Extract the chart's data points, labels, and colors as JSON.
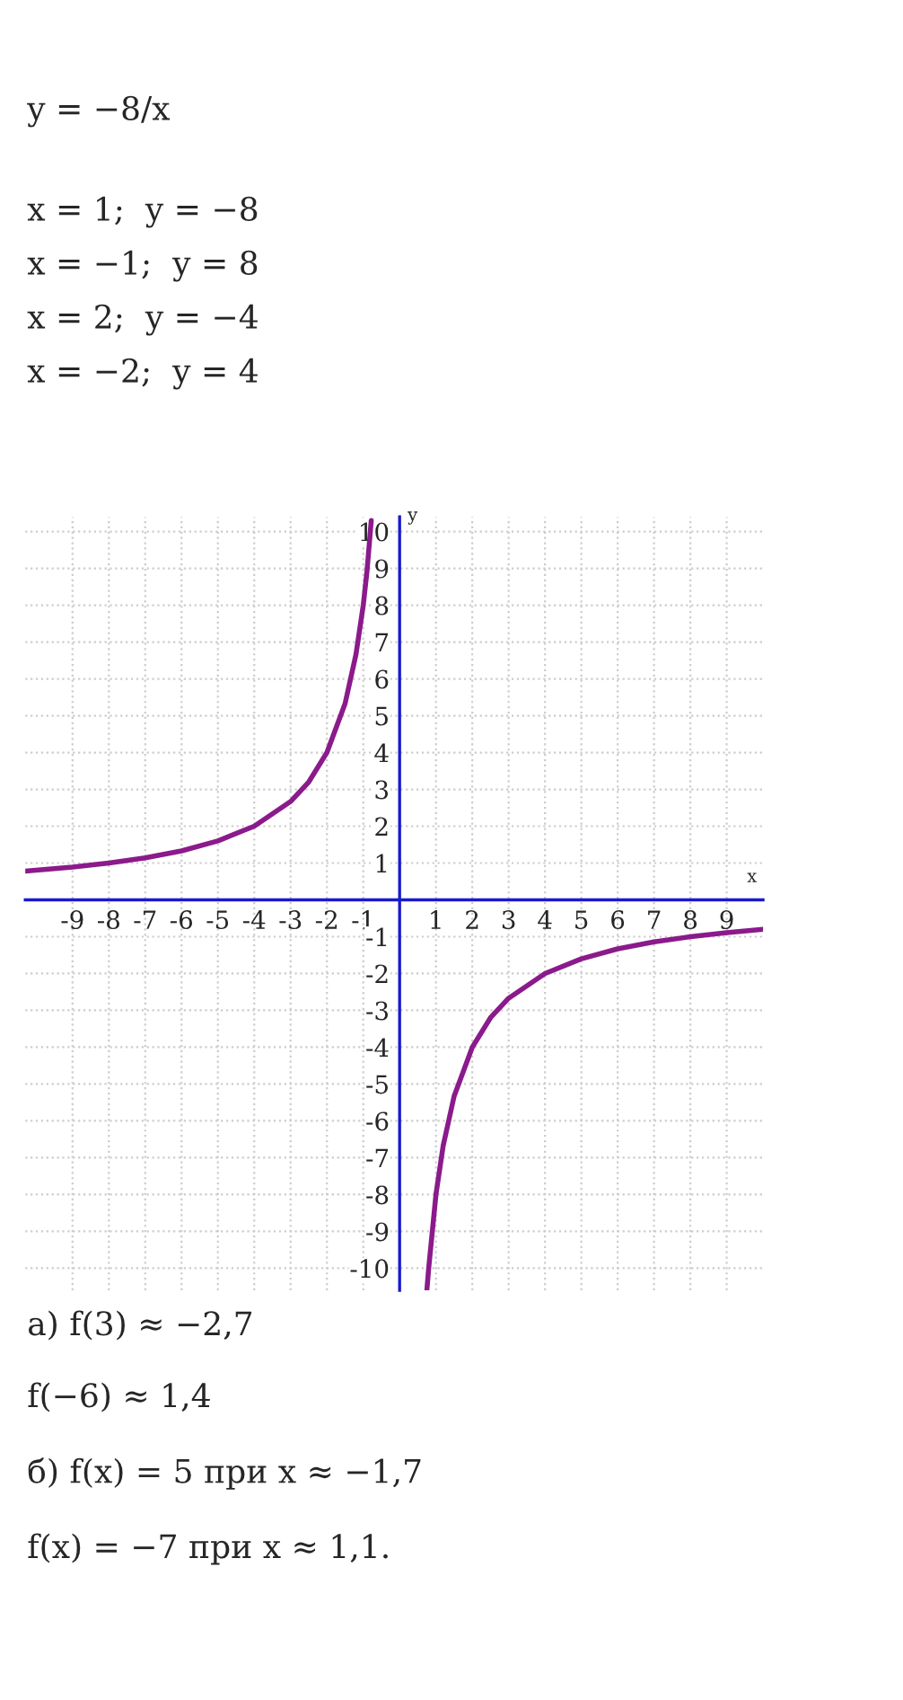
{
  "chart_data": {
    "type": "line",
    "annotations": [
      "y = −8/x",
      "x = 1;  y = −8",
      "x = −1;  y = 8",
      "x = 2;  y = −4",
      "x = −2;  y = 4",
      "а) f(3) ≈ −2,7",
      "f(−6) ≈ 1,4",
      "б) f(x) = 5 при x ≈ −1,7",
      "f(x) = −7 при x ≈ 1,1."
    ],
    "xlabel": "x",
    "ylabel": "y",
    "series": [
      {
        "color": "#8b1a8b",
        "x": [
          -10.3,
          -9,
          -8,
          -7,
          -6,
          -5,
          -4,
          -3,
          -2.5,
          -2,
          -1.5,
          -1.2,
          -1,
          -0.9,
          -0.78
        ],
        "values": [
          0.78,
          0.89,
          1,
          1.14,
          1.33,
          1.6,
          2,
          2.67,
          3.2,
          4,
          5.33,
          6.67,
          8,
          8.9,
          10.3
        ]
      },
      {
        "color": "#8b1a8b",
        "x": [
          0.75,
          0.8,
          1,
          1.2,
          1.5,
          2,
          2.5,
          3,
          4,
          5,
          6,
          7,
          8,
          9,
          10
        ],
        "values": [
          -10.6,
          -10,
          -8,
          -6.67,
          -5.33,
          -4,
          -3.2,
          -2.67,
          -2,
          -1.6,
          -1.33,
          -1.14,
          -1,
          -0.89,
          -0.8
        ]
      }
    ],
    "xlim": [
      -10.3,
      10
    ],
    "ylim": [
      -10.6,
      10.4
    ],
    "xticks": [
      -9,
      -8,
      -7,
      -6,
      -5,
      -4,
      -3,
      -2,
      -1,
      1,
      2,
      3,
      4,
      5,
      6,
      7,
      8,
      9
    ],
    "yticks": [
      -10,
      -9,
      -8,
      -7,
      -6,
      -5,
      -4,
      -3,
      -2,
      -1,
      1,
      2,
      3,
      4,
      5,
      6,
      7,
      8,
      9,
      10
    ],
    "grid": true,
    "line_style": "solid",
    "marker": "none"
  }
}
